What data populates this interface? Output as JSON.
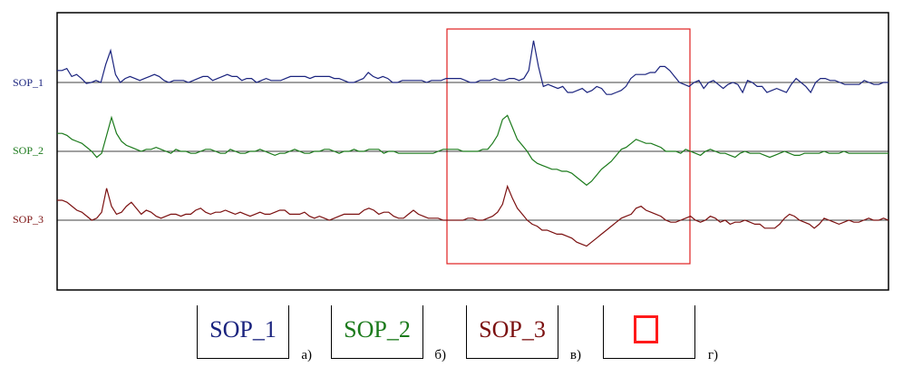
{
  "chart_data": {
    "type": "line",
    "series": [
      {
        "name": "SOP_1",
        "color": "#1a237e",
        "values": [
          0.6,
          0.6,
          0.7,
          0.3,
          0.4,
          0.2,
          -0.05,
          0.0,
          0.1,
          0.0,
          0.9,
          1.6,
          0.4,
          0.0,
          0.2,
          0.3,
          0.2,
          0.1,
          0.2,
          0.3,
          0.4,
          0.3,
          0.1,
          0.0,
          0.1,
          0.1,
          0.1,
          0.0,
          0.1,
          0.2,
          0.3,
          0.3,
          0.1,
          0.2,
          0.3,
          0.4,
          0.3,
          0.3,
          0.1,
          0.2,
          0.2,
          0.0,
          0.1,
          0.2,
          0.1,
          0.1,
          0.1,
          0.2,
          0.3,
          0.3,
          0.3,
          0.3,
          0.2,
          0.3,
          0.3,
          0.3,
          0.3,
          0.2,
          0.2,
          0.1,
          0.0,
          0.0,
          0.1,
          0.2,
          0.5,
          0.3,
          0.2,
          0.3,
          0.2,
          0.0,
          0.0,
          0.1,
          0.1,
          0.1,
          0.1,
          0.1,
          0.0,
          0.1,
          0.1,
          0.1,
          0.2,
          0.2,
          0.2,
          0.2,
          0.1,
          0.0,
          0.0,
          0.1,
          0.1,
          0.1,
          0.2,
          0.1,
          0.1,
          0.2,
          0.2,
          0.1,
          0.2,
          0.6,
          2.1,
          0.8,
          -0.2,
          -0.1,
          -0.2,
          -0.3,
          -0.2,
          -0.5,
          -0.5,
          -0.4,
          -0.3,
          -0.5,
          -0.4,
          -0.2,
          -0.3,
          -0.6,
          -0.6,
          -0.5,
          -0.4,
          -0.2,
          0.2,
          0.4,
          0.4,
          0.4,
          0.5,
          0.5,
          0.8,
          0.8,
          0.6,
          0.3,
          0.0,
          -0.1,
          -0.2,
          0.0,
          0.1,
          -0.3,
          0.0,
          0.1,
          -0.1,
          -0.3,
          -0.1,
          0.0,
          -0.1,
          -0.5,
          0.1,
          0.0,
          -0.2,
          -0.2,
          -0.5,
          -0.4,
          -0.3,
          -0.4,
          -0.5,
          -0.1,
          0.2,
          0.0,
          -0.2,
          -0.5,
          0.0,
          0.2,
          0.2,
          0.1,
          0.1,
          0.0,
          -0.1,
          -0.1,
          -0.1,
          -0.1,
          0.1,
          0.0,
          -0.1,
          -0.1,
          0.0,
          0.0
        ]
      },
      {
        "name": "SOP_2",
        "color": "#1b7a1b",
        "values": [
          0.9,
          0.9,
          0.8,
          0.6,
          0.5,
          0.4,
          0.2,
          0.0,
          -0.3,
          -0.1,
          0.8,
          1.7,
          0.9,
          0.5,
          0.3,
          0.2,
          0.1,
          0.0,
          0.1,
          0.1,
          0.2,
          0.1,
          0.0,
          -0.1,
          0.1,
          0.0,
          0.0,
          -0.1,
          -0.1,
          0.0,
          0.1,
          0.1,
          0.0,
          -0.1,
          -0.1,
          0.1,
          0.0,
          -0.1,
          -0.1,
          0.0,
          0.0,
          0.1,
          0.0,
          -0.1,
          -0.2,
          -0.1,
          -0.1,
          0.0,
          0.1,
          0.0,
          -0.1,
          -0.1,
          0.0,
          0.0,
          0.1,
          0.1,
          0.0,
          -0.1,
          0.0,
          0.0,
          0.1,
          0.0,
          0.0,
          0.1,
          0.1,
          0.1,
          -0.1,
          0.0,
          0.0,
          -0.1,
          -0.1,
          -0.1,
          -0.1,
          -0.1,
          -0.1,
          -0.1,
          -0.1,
          0.0,
          0.1,
          0.1,
          0.1,
          0.1,
          0.0,
          0.0,
          0.0,
          0.0,
          0.1,
          0.1,
          0.4,
          0.8,
          1.6,
          1.8,
          1.2,
          0.6,
          0.3,
          0.0,
          -0.4,
          -0.6,
          -0.7,
          -0.8,
          -0.9,
          -0.9,
          -1.0,
          -1.0,
          -1.1,
          -1.3,
          -1.5,
          -1.7,
          -1.5,
          -1.2,
          -0.9,
          -0.7,
          -0.5,
          -0.2,
          0.1,
          0.2,
          0.4,
          0.6,
          0.5,
          0.4,
          0.4,
          0.3,
          0.2,
          0.0,
          0.0,
          0.0,
          -0.1,
          0.1,
          0.0,
          -0.1,
          -0.2,
          0.0,
          0.1,
          0.0,
          -0.1,
          -0.1,
          -0.2,
          -0.3,
          -0.1,
          0.0,
          -0.1,
          -0.1,
          -0.1,
          -0.2,
          -0.3,
          -0.2,
          -0.1,
          0.0,
          -0.1,
          -0.2,
          -0.2,
          -0.1,
          -0.1,
          -0.1,
          -0.1,
          0.0,
          -0.1,
          -0.1,
          -0.1,
          0.0,
          -0.1,
          -0.1,
          -0.1,
          -0.1,
          -0.1,
          -0.1,
          -0.1,
          -0.1,
          -0.1
        ]
      },
      {
        "name": "SOP_3",
        "color": "#7b1010",
        "values": [
          1.0,
          1.0,
          0.9,
          0.7,
          0.5,
          0.4,
          0.2,
          0.0,
          0.1,
          0.4,
          1.6,
          0.7,
          0.3,
          0.4,
          0.7,
          0.9,
          0.6,
          0.3,
          0.5,
          0.4,
          0.2,
          0.1,
          0.2,
          0.3,
          0.3,
          0.2,
          0.3,
          0.3,
          0.5,
          0.6,
          0.4,
          0.3,
          0.4,
          0.4,
          0.5,
          0.4,
          0.3,
          0.4,
          0.3,
          0.2,
          0.3,
          0.4,
          0.3,
          0.3,
          0.4,
          0.5,
          0.5,
          0.3,
          0.3,
          0.3,
          0.4,
          0.2,
          0.1,
          0.2,
          0.1,
          0.0,
          0.1,
          0.2,
          0.3,
          0.3,
          0.3,
          0.3,
          0.5,
          0.6,
          0.5,
          0.3,
          0.4,
          0.4,
          0.2,
          0.1,
          0.1,
          0.3,
          0.5,
          0.3,
          0.2,
          0.1,
          0.1,
          0.1,
          0.0,
          0.0,
          0.0,
          0.0,
          0.0,
          0.1,
          0.1,
          0.0,
          0.0,
          0.1,
          0.2,
          0.4,
          0.8,
          1.7,
          1.1,
          0.6,
          0.3,
          0.0,
          -0.2,
          -0.3,
          -0.5,
          -0.5,
          -0.6,
          -0.7,
          -0.7,
          -0.8,
          -0.9,
          -1.1,
          -1.2,
          -1.3,
          -1.1,
          -0.9,
          -0.7,
          -0.5,
          -0.3,
          -0.1,
          0.1,
          0.2,
          0.3,
          0.6,
          0.7,
          0.5,
          0.4,
          0.3,
          0.2,
          0.0,
          -0.1,
          -0.1,
          0.0,
          0.1,
          0.2,
          0.0,
          -0.1,
          0.0,
          0.2,
          0.1,
          -0.1,
          0.0,
          -0.2,
          -0.1,
          -0.1,
          0.0,
          -0.1,
          -0.2,
          -0.2,
          -0.4,
          -0.4,
          -0.4,
          -0.2,
          0.1,
          0.3,
          0.2,
          0.0,
          -0.1,
          -0.2,
          -0.4,
          -0.2,
          0.1,
          0.0,
          -0.1,
          -0.2,
          -0.1,
          0.0,
          -0.1,
          -0.1,
          0.0,
          0.1,
          0.0,
          0.0,
          0.1,
          0.0
        ]
      }
    ],
    "type_note": "three stacked signal traces with horizontal baselines",
    "grid": false,
    "highlight_color": "#e02020"
  },
  "legend": [
    {
      "label": "SOP_1",
      "color": "#1a237e",
      "suffix": "а)"
    },
    {
      "label": "SOP_2",
      "color": "#1b7a1b",
      "suffix": "б)"
    },
    {
      "label": "SOP_3",
      "color": "#7b1010",
      "suffix": "в)"
    },
    {
      "label": "",
      "color": "#ff1a1a",
      "suffix": "г)"
    }
  ]
}
